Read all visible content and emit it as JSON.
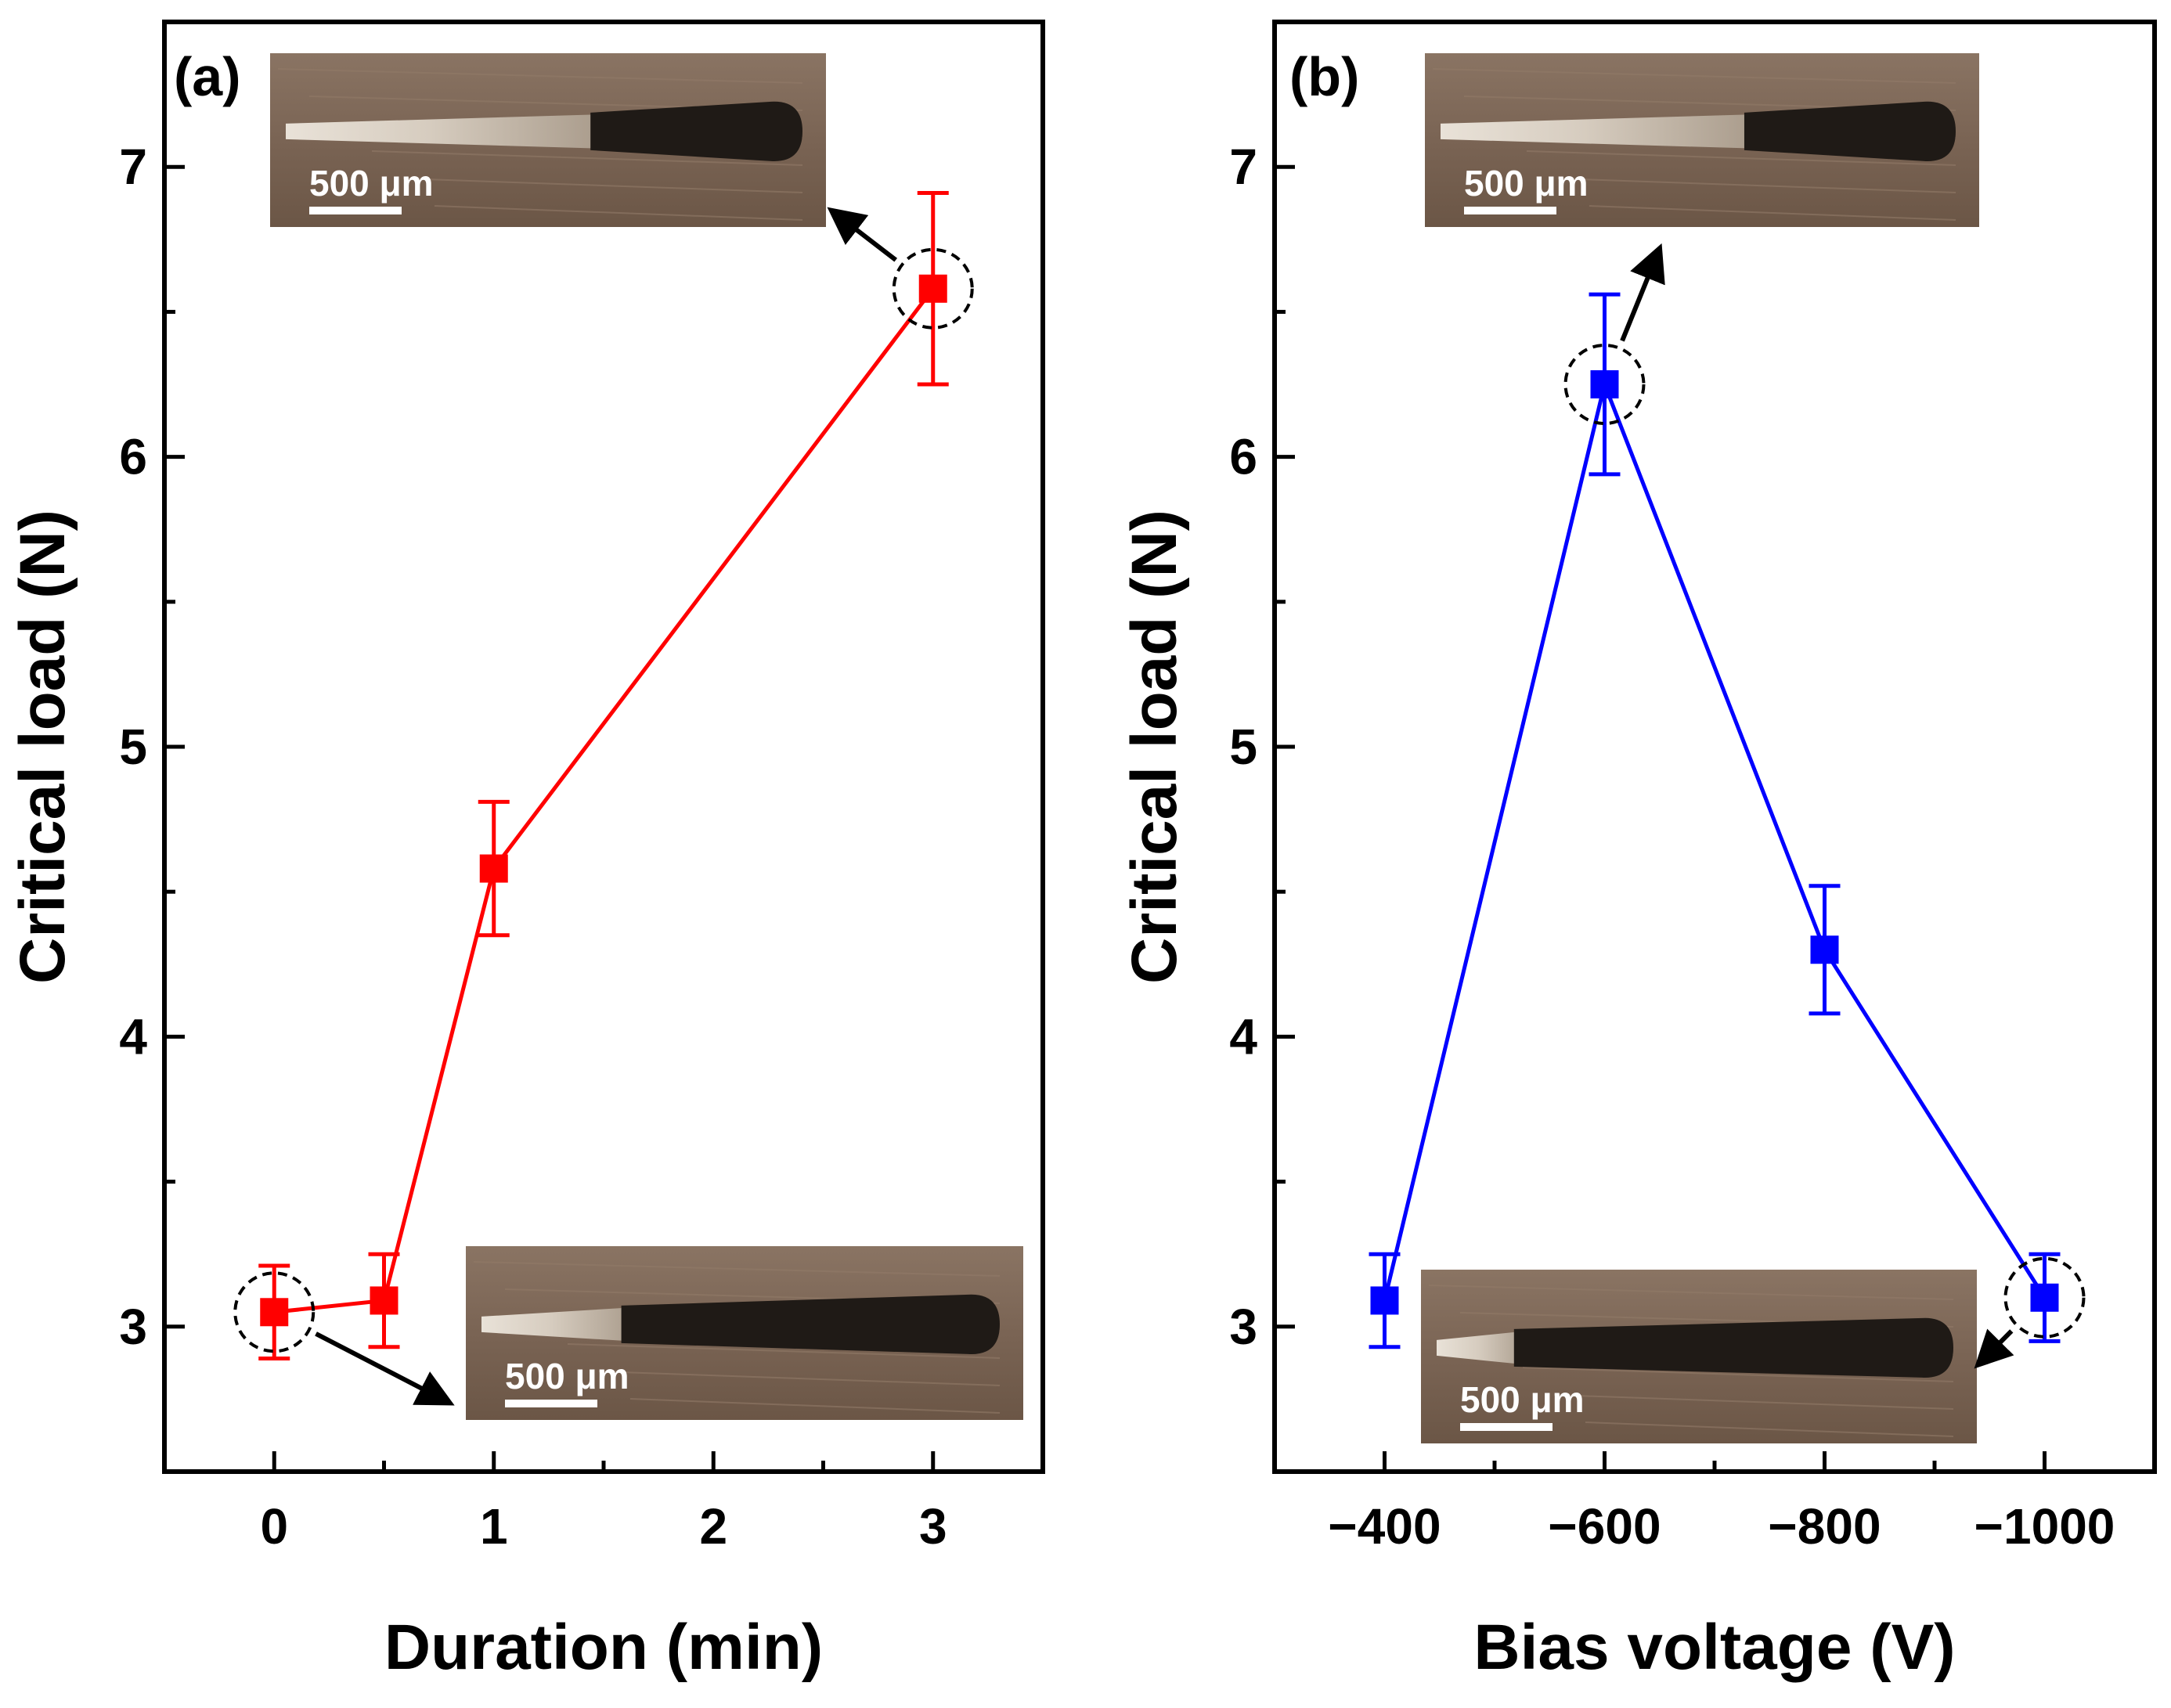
{
  "chart_data": [
    {
      "type": "line",
      "panel_label": "(a)",
      "xlabel": "Duration (min)",
      "ylabel": "Critical load (N)",
      "xlim": [
        -0.5,
        3.5
      ],
      "ylim": [
        2.5,
        7.5
      ],
      "x_ticks": [
        0,
        1,
        2,
        3
      ],
      "x_tick_labels": [
        "0",
        "1",
        "2",
        "3"
      ],
      "y_ticks": [
        3,
        4,
        5,
        6,
        7
      ],
      "y_tick_labels": [
        "3",
        "4",
        "5",
        "6",
        "7"
      ],
      "grid": false,
      "series": [
        {
          "color": "#ff0000",
          "marker": "square",
          "x": [
            0,
            0.5,
            1,
            3
          ],
          "y": [
            3.05,
            3.09,
            4.58,
            6.58
          ],
          "yerr": [
            0.16,
            0.16,
            0.23,
            0.33
          ]
        }
      ],
      "highlighted_points": [
        0,
        3
      ],
      "insets": [
        {
          "scale_label": "500 μm",
          "kind": "scratch-track micrograph"
        },
        {
          "scale_label": "500 μm",
          "kind": "scratch-track micrograph"
        }
      ]
    },
    {
      "type": "line",
      "panel_label": "(b)",
      "xlabel": "Bias voltage (V)",
      "ylabel": "Critical load (N)",
      "xlim": [
        -300,
        -1100
      ],
      "ylim": [
        2.5,
        7.5
      ],
      "x_ticks": [
        -400,
        -600,
        -800,
        -1000
      ],
      "x_tick_labels": [
        "−400",
        "−600",
        "−800",
        "−1000"
      ],
      "y_ticks": [
        3,
        4,
        5,
        6,
        7
      ],
      "y_tick_labels": [
        "3",
        "4",
        "5",
        "6",
        "7"
      ],
      "grid": false,
      "series": [
        {
          "color": "#0000ff",
          "marker": "square",
          "x": [
            -400,
            -600,
            -800,
            -1000
          ],
          "y": [
            3.09,
            6.25,
            4.3,
            3.1
          ],
          "yerr": [
            0.16,
            0.31,
            0.22,
            0.15
          ]
        }
      ],
      "highlighted_points": [
        1,
        3
      ],
      "insets": [
        {
          "scale_label": "500 μm",
          "kind": "scratch-track micrograph"
        },
        {
          "scale_label": "500 μm",
          "kind": "scratch-track micrograph"
        }
      ]
    }
  ]
}
